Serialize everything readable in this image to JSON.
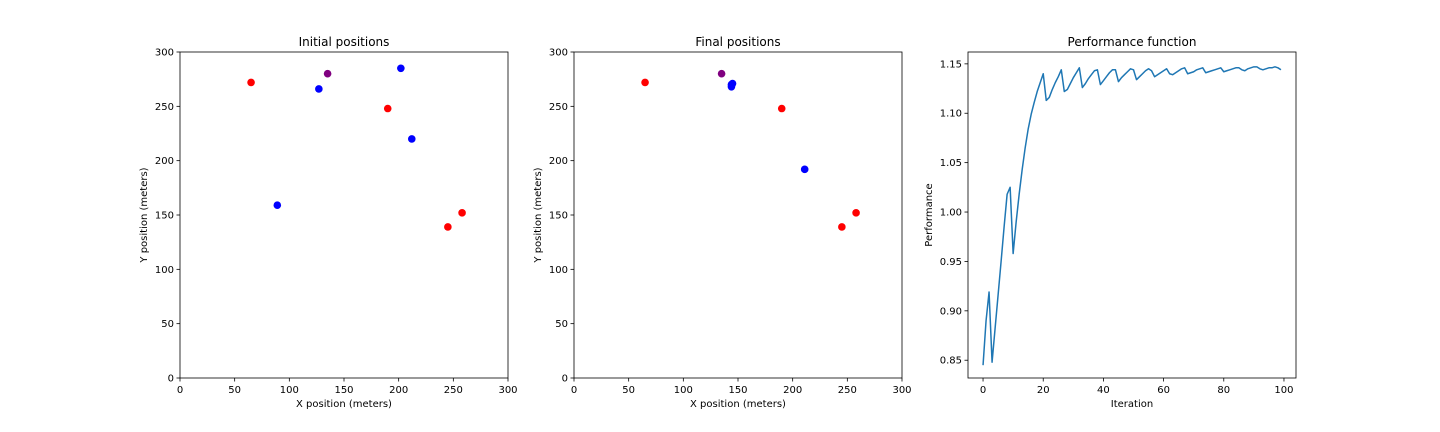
{
  "chart_data": [
    {
      "type": "scatter",
      "title": "Initial positions",
      "xlabel": "X position (meters)",
      "ylabel": "Y position (meters)",
      "xlim": [
        0,
        300
      ],
      "ylim": [
        0,
        300
      ],
      "xticks": [
        0,
        50,
        100,
        150,
        200,
        250,
        300
      ],
      "yticks": [
        0,
        50,
        100,
        150,
        200,
        250,
        300
      ],
      "grid": false,
      "points": [
        {
          "x": 65,
          "y": 272,
          "color": "#ff0000"
        },
        {
          "x": 135,
          "y": 280,
          "color": "#800080"
        },
        {
          "x": 190,
          "y": 248,
          "color": "#ff0000"
        },
        {
          "x": 245,
          "y": 139,
          "color": "#ff0000"
        },
        {
          "x": 258,
          "y": 152,
          "color": "#ff0000"
        },
        {
          "x": 127,
          "y": 266,
          "color": "#0000ff"
        },
        {
          "x": 202,
          "y": 285,
          "color": "#0000ff"
        },
        {
          "x": 212,
          "y": 220,
          "color": "#0000ff"
        },
        {
          "x": 89,
          "y": 159,
          "color": "#0000ff"
        }
      ]
    },
    {
      "type": "scatter",
      "title": "Final positions",
      "xlabel": "X position (meters)",
      "ylabel": "Y position (meters)",
      "xlim": [
        0,
        300
      ],
      "ylim": [
        0,
        300
      ],
      "xticks": [
        0,
        50,
        100,
        150,
        200,
        250,
        300
      ],
      "yticks": [
        0,
        50,
        100,
        150,
        200,
        250,
        300
      ],
      "grid": false,
      "points": [
        {
          "x": 65,
          "y": 272,
          "color": "#ff0000"
        },
        {
          "x": 135,
          "y": 280,
          "color": "#800080"
        },
        {
          "x": 190,
          "y": 248,
          "color": "#ff0000"
        },
        {
          "x": 245,
          "y": 139,
          "color": "#ff0000"
        },
        {
          "x": 258,
          "y": 152,
          "color": "#ff0000"
        },
        {
          "x": 144,
          "y": 270,
          "color": "#0000ff"
        },
        {
          "x": 145,
          "y": 271,
          "color": "#0000ff"
        },
        {
          "x": 144,
          "y": 268,
          "color": "#0000ff"
        },
        {
          "x": 211,
          "y": 192,
          "color": "#0000ff"
        }
      ]
    },
    {
      "type": "line",
      "title": "Performance function",
      "xlabel": "Iteration",
      "ylabel": "Performance",
      "xlim": [
        -5,
        104
      ],
      "ylim": [
        0.832,
        1.162
      ],
      "xticks": [
        0,
        20,
        40,
        60,
        80,
        100
      ],
      "yticks": [
        0.85,
        0.9,
        0.95,
        1.0,
        1.05,
        1.1,
        1.15
      ],
      "ytick_labels": [
        "0.85",
        "0.90",
        "0.95",
        "1.00",
        "1.05",
        "1.10",
        "1.15"
      ],
      "grid": false,
      "series": [
        {
          "color": "#1f77b4",
          "x": [
            0,
            1,
            2,
            3,
            4,
            5,
            6,
            7,
            8,
            9,
            10,
            11,
            12,
            13,
            14,
            15,
            16,
            17,
            18,
            19,
            20,
            21,
            22,
            23,
            24,
            25,
            26,
            27,
            28,
            29,
            30,
            31,
            32,
            33,
            34,
            35,
            36,
            37,
            38,
            39,
            40,
            41,
            42,
            43,
            44,
            45,
            46,
            47,
            48,
            49,
            50,
            51,
            52,
            53,
            54,
            55,
            56,
            57,
            58,
            59,
            60,
            61,
            62,
            63,
            64,
            65,
            66,
            67,
            68,
            69,
            70,
            71,
            72,
            73,
            74,
            75,
            76,
            77,
            78,
            79,
            80,
            81,
            82,
            83,
            84,
            85,
            86,
            87,
            88,
            89,
            90,
            91,
            92,
            93,
            94,
            95,
            96,
            97,
            98,
            99
          ],
          "values": [
            0.845,
            0.89,
            0.919,
            0.848,
            0.882,
            0.916,
            0.95,
            0.985,
            1.018,
            1.025,
            0.958,
            0.99,
            1.018,
            1.043,
            1.065,
            1.084,
            1.099,
            1.111,
            1.122,
            1.131,
            1.14,
            1.113,
            1.116,
            1.124,
            1.131,
            1.137,
            1.144,
            1.122,
            1.124,
            1.13,
            1.136,
            1.141,
            1.146,
            1.126,
            1.13,
            1.135,
            1.139,
            1.143,
            1.144,
            1.129,
            1.133,
            1.137,
            1.141,
            1.144,
            1.144,
            1.132,
            1.136,
            1.139,
            1.142,
            1.145,
            1.144,
            1.134,
            1.137,
            1.14,
            1.143,
            1.145,
            1.143,
            1.137,
            1.139,
            1.141,
            1.143,
            1.145,
            1.14,
            1.139,
            1.141,
            1.143,
            1.145,
            1.146,
            1.14,
            1.141,
            1.142,
            1.144,
            1.145,
            1.146,
            1.141,
            1.142,
            1.143,
            1.144,
            1.145,
            1.146,
            1.142,
            1.143,
            1.144,
            1.145,
            1.146,
            1.146,
            1.144,
            1.143,
            1.145,
            1.146,
            1.147,
            1.147,
            1.145,
            1.144,
            1.145,
            1.146,
            1.146,
            1.147,
            1.146,
            1.144
          ]
        }
      ]
    }
  ]
}
